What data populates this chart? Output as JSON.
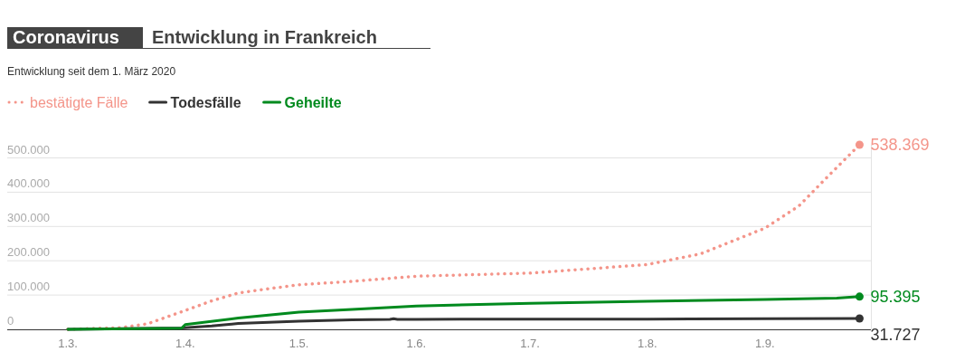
{
  "chart_data": {
    "type": "line",
    "title": "Coronavirus",
    "subtitle": "Entwicklung in Frankreich",
    "annotations": [
      "Entwicklung seit dem 1. März 2020"
    ],
    "legend": "top left",
    "grid": "y",
    "marker": "none",
    "xlim": [
      "2020-02-14",
      "2020-09-29"
    ],
    "ylim": [
      0,
      538369
    ],
    "xticks": [
      {
        "value": "2020-03-01",
        "label": "1.3."
      },
      {
        "value": "2020-04-01",
        "label": "1.4."
      },
      {
        "value": "2020-05-01",
        "label": "1.5."
      },
      {
        "value": "2020-06-01",
        "label": "1.6."
      },
      {
        "value": "2020-07-01",
        "label": "1.7."
      },
      {
        "value": "2020-08-01",
        "label": "1.8."
      },
      {
        "value": "2020-09-01",
        "label": "1.9."
      }
    ],
    "yticks": [
      0,
      {
        "value": 100000,
        "label": "100.000"
      },
      {
        "value": 200000,
        "label": "200.000"
      },
      {
        "value": 300000,
        "label": "300.000"
      },
      {
        "value": 400000,
        "label": "400.000"
      },
      {
        "value": 500000,
        "label": "500.000"
      }
    ],
    "series": [
      {
        "name": "bestätigte Fälle",
        "color": "#f4958a",
        "line_style": "dotted",
        "x": [
          "2020-03-01",
          "2020-03-15",
          "2020-03-22",
          "2020-04-01",
          "2020-04-08",
          "2020-04-15",
          "2020-04-22",
          "2020-05-01",
          "2020-05-15",
          "2020-06-01",
          "2020-07-01",
          "2020-08-01",
          "2020-08-15",
          "2020-09-01",
          "2020-09-10",
          "2020-09-18",
          "2020-09-26"
        ],
        "values": [
          0,
          5000,
          16000,
          55000,
          83000,
          106000,
          117000,
          130000,
          140000,
          155000,
          164000,
          189000,
          220000,
          295000,
          360000,
          450000,
          538369
        ],
        "value_labels": [
          null,
          null,
          null,
          null,
          null,
          null,
          null,
          null,
          null,
          null,
          null,
          null,
          null,
          null,
          null,
          null,
          "538.369"
        ]
      },
      {
        "name": "Todesfälle",
        "color": "#333333",
        "line_style": "solid",
        "x": [
          "2020-03-01",
          "2020-03-31",
          "2020-04-08",
          "2020-04-15",
          "2020-05-01",
          "2020-05-15",
          "2020-05-25",
          "2020-05-26",
          "2020-05-27",
          "2020-06-01",
          "2020-07-01",
          "2020-08-01",
          "2020-09-01",
          "2020-09-26"
        ],
        "values": [
          0,
          4000,
          10000,
          17000,
          24000,
          28000,
          29000,
          31000,
          29000,
          29000,
          30000,
          30000,
          31000,
          31727
        ],
        "value_labels": [
          null,
          null,
          null,
          null,
          null,
          null,
          null,
          null,
          null,
          null,
          null,
          null,
          null,
          "31.727"
        ]
      },
      {
        "name": "Geheilte",
        "color": "#008a1e",
        "line_style": "solid",
        "x": [
          "2020-03-01",
          "2020-03-31",
          "2020-04-01",
          "2020-04-15",
          "2020-05-01",
          "2020-05-15",
          "2020-06-01",
          "2020-07-01",
          "2020-08-01",
          "2020-09-01",
          "2020-09-20",
          "2020-09-26"
        ],
        "values": [
          0,
          3000,
          14000,
          33000,
          50000,
          58000,
          68000,
          76000,
          82000,
          87000,
          91000,
          95395
        ],
        "value_labels": [
          null,
          null,
          null,
          null,
          null,
          null,
          null,
          null,
          null,
          null,
          null,
          "95.395"
        ]
      }
    ]
  }
}
